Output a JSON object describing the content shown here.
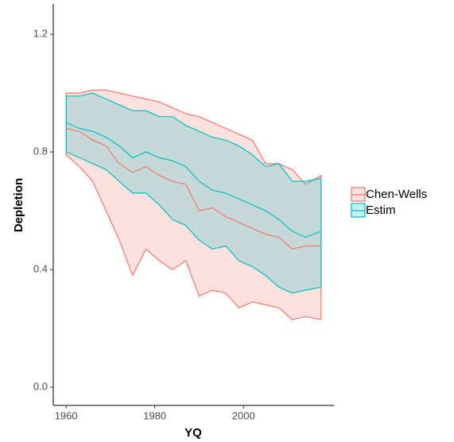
{
  "chart_data": {
    "type": "ribbon",
    "x_label": "YQ",
    "y_label": "Depletion",
    "x": [
      1960,
      1963,
      1966,
      1969,
      1972,
      1975,
      1978,
      1981,
      1984,
      1987,
      1990,
      1993,
      1996,
      1999,
      2002,
      2005,
      2008,
      2011,
      2014,
      2017.5
    ],
    "series": [
      {
        "name": "Chen-Wells",
        "color": "#F8766D",
        "upper": [
          1.0,
          1.0,
          1.01,
          1.01,
          1.0,
          0.99,
          0.98,
          0.97,
          0.95,
          0.93,
          0.92,
          0.9,
          0.88,
          0.86,
          0.84,
          0.76,
          0.76,
          0.74,
          0.69,
          0.72
        ],
        "median": [
          0.88,
          0.87,
          0.84,
          0.82,
          0.76,
          0.73,
          0.75,
          0.72,
          0.7,
          0.69,
          0.6,
          0.61,
          0.58,
          0.56,
          0.54,
          0.52,
          0.51,
          0.47,
          0.48,
          0.48
        ],
        "lower": [
          0.79,
          0.75,
          0.7,
          0.6,
          0.5,
          0.38,
          0.47,
          0.43,
          0.4,
          0.43,
          0.31,
          0.33,
          0.32,
          0.27,
          0.29,
          0.28,
          0.27,
          0.23,
          0.24,
          0.23
        ]
      },
      {
        "name": "Estim",
        "color": "#00BFC4",
        "upper": [
          0.99,
          0.99,
          1.0,
          0.98,
          0.96,
          0.94,
          0.94,
          0.92,
          0.92,
          0.89,
          0.87,
          0.85,
          0.84,
          0.82,
          0.79,
          0.75,
          0.76,
          0.7,
          0.7,
          0.71
        ],
        "median": [
          0.9,
          0.88,
          0.87,
          0.85,
          0.82,
          0.78,
          0.8,
          0.78,
          0.77,
          0.75,
          0.7,
          0.67,
          0.66,
          0.64,
          0.62,
          0.6,
          0.57,
          0.53,
          0.51,
          0.53
        ],
        "lower": [
          0.8,
          0.78,
          0.76,
          0.74,
          0.7,
          0.66,
          0.66,
          0.62,
          0.57,
          0.55,
          0.5,
          0.47,
          0.48,
          0.43,
          0.41,
          0.38,
          0.34,
          0.32,
          0.33,
          0.34
        ]
      }
    ],
    "xlim": [
      1957.1,
      2020.4
    ],
    "xticks": [
      1960,
      1980,
      2000
    ],
    "ylim": [
      -0.062,
      1.303
    ],
    "yticks": [
      {
        "value": 0,
        "label": "0.0"
      },
      0.4,
      0.8,
      1.2
    ],
    "legend": "right"
  }
}
